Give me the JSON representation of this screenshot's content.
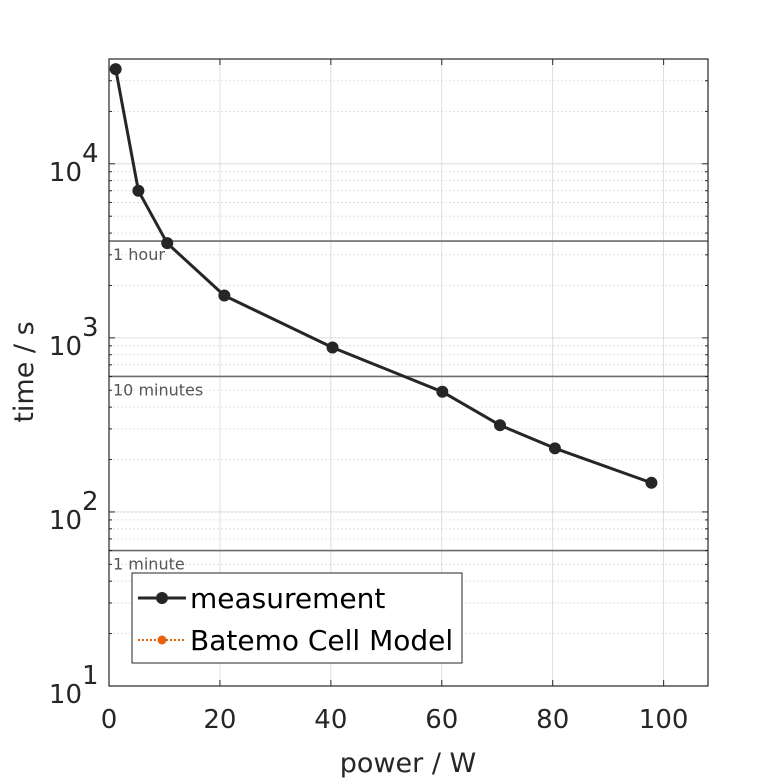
{
  "chart_data": {
    "type": "line",
    "xlabel": "power / W",
    "ylabel": "time / s",
    "xlim": [
      0,
      108
    ],
    "ylim": [
      10,
      40000
    ],
    "yscale": "log",
    "grid": true,
    "x_ticks": [
      0,
      20,
      40,
      60,
      80,
      100
    ],
    "x_tick_labels": [
      "0",
      "20",
      "40",
      "60",
      "80",
      "100"
    ],
    "y_ticks": [
      10,
      100,
      1000,
      10000
    ],
    "y_tick_labels": [
      {
        "base": "10",
        "exp": "1"
      },
      {
        "base": "10",
        "exp": "2"
      },
      {
        "base": "10",
        "exp": "3"
      },
      {
        "base": "10",
        "exp": "4"
      }
    ],
    "series": [
      {
        "name": "measurement",
        "color": "#262626",
        "marker": "circle",
        "line": "solid",
        "points": [
          {
            "x": 1.2,
            "y": 35000
          },
          {
            "x": 5.3,
            "y": 7000
          },
          {
            "x": 10.5,
            "y": 3500
          },
          {
            "x": 20.8,
            "y": 1750
          },
          {
            "x": 40.3,
            "y": 880
          },
          {
            "x": 60.1,
            "y": 490
          },
          {
            "x": 70.5,
            "y": 315
          },
          {
            "x": 80.4,
            "y": 232
          },
          {
            "x": 97.8,
            "y": 147
          }
        ]
      },
      {
        "name": "Batemo Cell Model",
        "color": "#e8620a",
        "marker": "circle",
        "line": "dotted",
        "points": []
      }
    ],
    "reference_lines": [
      {
        "y": 3600,
        "label": "1 hour"
      },
      {
        "y": 600,
        "label": "10 minutes"
      },
      {
        "y": 60,
        "label": "1 minute"
      }
    ],
    "legend_placement": "bottom-left"
  }
}
